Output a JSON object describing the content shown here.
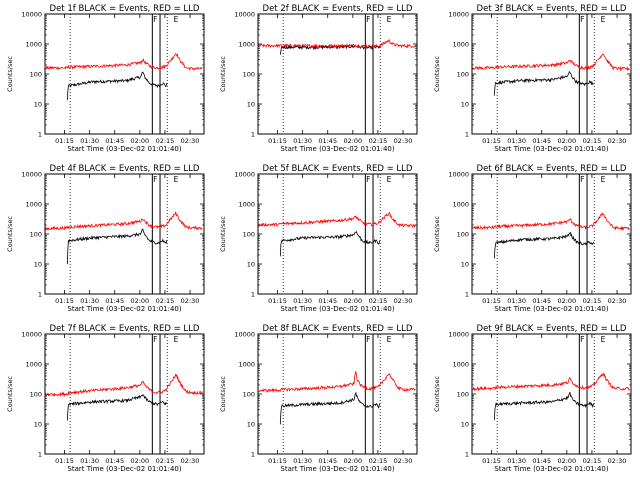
{
  "chart_data": {
    "type": "line",
    "layout": "3x3 grid of panels",
    "time_ticks": [
      "01:15",
      "01:30",
      "01:45",
      "02:00",
      "02:15",
      "02:30"
    ],
    "time_tick_minutes": [
      73.33,
      88.33,
      103.33,
      118.33,
      133.33,
      148.33
    ],
    "x_range_minutes": [
      61.67,
      156.67
    ],
    "xlabel": "Start Time (03-Dec-02 01:01:40)",
    "ylabel": "Counts/sec",
    "yscale": "log",
    "ylim": [
      1,
      10000
    ],
    "y_ticks": [
      1,
      10,
      100,
      1000,
      10000
    ],
    "y_tick_labels": [
      "1",
      "10",
      "100",
      "1000",
      "10000"
    ],
    "dotted_vlines_minutes": [
      76.7,
      134.7
    ],
    "solid_vlines_minutes": [
      125.8,
      130.4
    ],
    "markers": [
      {
        "label": "F",
        "minute": 126.3
      },
      {
        "label": "E",
        "minute": 138.5
      }
    ],
    "series_colors": {
      "Events": "#000000",
      "LLD": "#ff0000"
    },
    "anchor_minutes": [
      62,
      75,
      75.5,
      90,
      110,
      119,
      120,
      121,
      122,
      123,
      124,
      126,
      129,
      132,
      134,
      135,
      138,
      140,
      142,
      146,
      150,
      156
    ],
    "panels": [
      {
        "title": "Det 1f  BLACK = Events, RED = LLD",
        "show_xlabels": true,
        "series": [
          {
            "name": "Events",
            "start": 75,
            "values": [
              null,
              13,
              40,
              55,
              60,
              80,
              120,
              85,
              70,
              60,
              50,
              45,
              40,
              50,
              40,
              55,
              70,
              null,
              null,
              null,
              null,
              null
            ]
          },
          {
            "name": "LLD",
            "start": 62,
            "values": [
              160,
              160,
              170,
              180,
              200,
              240,
              300,
              260,
              230,
              210,
              190,
              170,
              160,
              170,
              190,
              220,
              350,
              500,
              300,
              160,
              150,
              150
            ]
          }
        ]
      },
      {
        "title": "Det 2f  BLACK = Events, RED = LLD",
        "show_xlabels": true,
        "series": [
          {
            "name": "Events",
            "start": 75,
            "values": [
              null,
              400,
              780,
              780,
              800,
              830,
              850,
              820,
              800,
              790,
              780,
              770,
              760,
              780,
              790,
              800,
              820,
              null,
              null,
              null,
              null,
              null
            ]
          },
          {
            "name": "LLD",
            "start": 62,
            "values": [
              880,
              880,
              880,
              870,
              880,
              900,
              920,
              900,
              880,
              870,
              860,
              850,
              840,
              850,
              860,
              900,
              1150,
              1300,
              1000,
              880,
              860,
              860
            ]
          }
        ]
      },
      {
        "title": "Det 3f  BLACK = Events, RED = LLD",
        "show_xlabels": true,
        "series": [
          {
            "name": "Events",
            "start": 75,
            "values": [
              null,
              18,
              50,
              60,
              65,
              85,
              120,
              90,
              75,
              65,
              55,
              50,
              45,
              55,
              45,
              60,
              75,
              null,
              null,
              null,
              null,
              null
            ]
          },
          {
            "name": "LLD",
            "start": 62,
            "values": [
              160,
              160,
              170,
              180,
              200,
              240,
              310,
              260,
              230,
              210,
              190,
              170,
              160,
              170,
              190,
              220,
              350,
              500,
              300,
              160,
              150,
              150
            ]
          }
        ]
      },
      {
        "title": "Det 4f  BLACK = Events, RED = LLD",
        "show_xlabels": true,
        "series": [
          {
            "name": "Events",
            "start": 75,
            "values": [
              null,
              10,
              60,
              75,
              85,
              100,
              140,
              100,
              85,
              70,
              60,
              55,
              50,
              60,
              50,
              65,
              80,
              null,
              null,
              null,
              null,
              null
            ]
          },
          {
            "name": "LLD",
            "start": 62,
            "values": [
              150,
              160,
              170,
              190,
              220,
              270,
              330,
              280,
              250,
              220,
              200,
              180,
              170,
              180,
              200,
              240,
              380,
              500,
              300,
              170,
              160,
              160
            ]
          }
        ]
      },
      {
        "title": "Det 5f  BLACK = Events, RED = LLD",
        "show_xlabels": true,
        "series": [
          {
            "name": "Events",
            "start": 75,
            "values": [
              null,
              18,
              60,
              75,
              80,
              95,
              130,
              100,
              85,
              70,
              60,
              55,
              50,
              60,
              50,
              65,
              80,
              null,
              null,
              null,
              null,
              null
            ]
          },
          {
            "name": "LLD",
            "start": 62,
            "values": [
              200,
              210,
              220,
              240,
              280,
              330,
              390,
              340,
              300,
              270,
              240,
              220,
              210,
              220,
              240,
              280,
              400,
              500,
              320,
              200,
              190,
              190
            ]
          }
        ]
      },
      {
        "title": "Det 6f  BLACK = Events, RED = LLD",
        "show_xlabels": true,
        "series": [
          {
            "name": "Events",
            "start": 75,
            "values": [
              null,
              14,
              50,
              65,
              70,
              85,
              120,
              90,
              75,
              65,
              55,
              50,
              45,
              55,
              45,
              60,
              75,
              null,
              null,
              null,
              null,
              null
            ]
          },
          {
            "name": "LLD",
            "start": 62,
            "values": [
              160,
              165,
              175,
              190,
              220,
              260,
              320,
              270,
              240,
              215,
              195,
              175,
              165,
              175,
              195,
              230,
              360,
              500,
              300,
              165,
              155,
              155
            ]
          }
        ]
      },
      {
        "title": "Det 7f  BLACK = Events, RED = LLD",
        "show_xlabels": true,
        "series": [
          {
            "name": "Events",
            "start": 75,
            "values": [
              null,
              12,
              45,
              55,
              60,
              80,
              100,
              80,
              70,
              60,
              55,
              50,
              45,
              55,
              45,
              60,
              70,
              null,
              null,
              null,
              null,
              null
            ]
          },
          {
            "name": "LLD",
            "start": 62,
            "values": [
              95,
              100,
              110,
              130,
              160,
              200,
              260,
              210,
              180,
              160,
              140,
              120,
              110,
              120,
              140,
              170,
              300,
              450,
              250,
              120,
              110,
              110
            ]
          }
        ]
      },
      {
        "title": "Det 8f  BLACK = Events, RED = LLD",
        "show_xlabels": true,
        "series": [
          {
            "name": "Events",
            "start": 75,
            "values": [
              null,
              10,
              40,
              45,
              50,
              65,
              110,
              75,
              60,
              50,
              45,
              40,
              38,
              45,
              38,
              50,
              65,
              null,
              null,
              null,
              null,
              null
            ]
          },
          {
            "name": "LLD",
            "start": 62,
            "values": [
              130,
              135,
              140,
              150,
              175,
              220,
              600,
              300,
              240,
              200,
              180,
              160,
              150,
              160,
              180,
              210,
              350,
              480,
              300,
              150,
              140,
              140
            ]
          }
        ]
      },
      {
        "title": "Det 9f  BLACK = Events, RED = LLD",
        "show_xlabels": true,
        "series": [
          {
            "name": "Events",
            "start": 75,
            "values": [
              null,
              14,
              45,
              50,
              55,
              75,
              110,
              80,
              65,
              55,
              50,
              45,
              40,
              50,
              40,
              55,
              70,
              null,
              null,
              null,
              null,
              null
            ]
          },
          {
            "name": "LLD",
            "start": 62,
            "values": [
              150,
              155,
              165,
              180,
              200,
              240,
              330,
              270,
              235,
              210,
              190,
              170,
              160,
              170,
              190,
              225,
              360,
              500,
              300,
              160,
              150,
              150
            ]
          }
        ]
      }
    ]
  }
}
